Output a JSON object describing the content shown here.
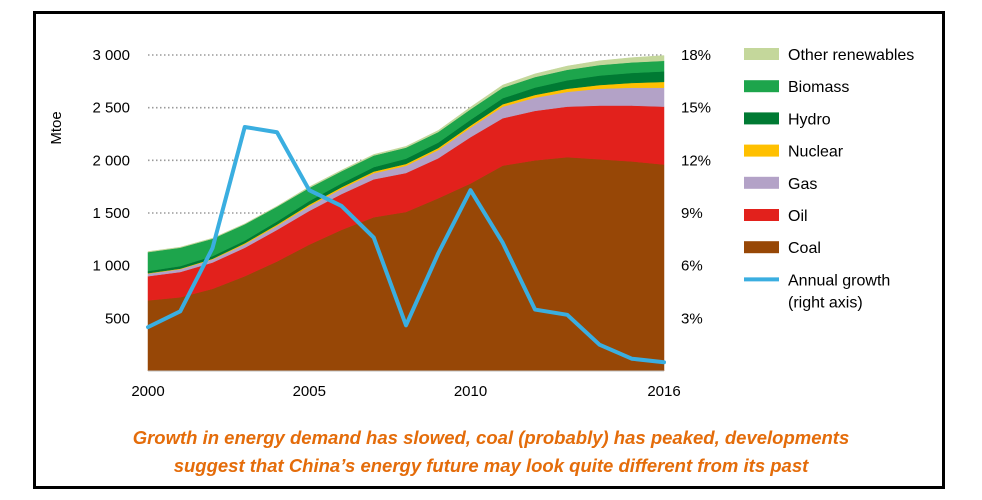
{
  "chart_data": {
    "type": "area",
    "title": "",
    "ylabel": "Mtoe",
    "y2label": "",
    "xlim": [
      2000,
      2016
    ],
    "ylim": [
      0,
      3000
    ],
    "y2lim": [
      0,
      18
    ],
    "x_ticks": [
      "2000",
      "2005",
      "2010",
      "2016"
    ],
    "y_ticks": [
      "500",
      "1 000",
      "1 500",
      "2 000",
      "2 500",
      "3 000"
    ],
    "y2_ticks": [
      "3%",
      "6%",
      "9%",
      "12%",
      "15%",
      "18%"
    ],
    "grid": "dotted horizontal",
    "years": [
      2000,
      2001,
      2002,
      2003,
      2004,
      2005,
      2006,
      2007,
      2008,
      2009,
      2010,
      2011,
      2012,
      2013,
      2014,
      2015,
      2016
    ],
    "series": [
      {
        "name": "Coal",
        "color": "#974706",
        "values": [
          670,
          700,
          780,
          900,
          1040,
          1200,
          1340,
          1460,
          1510,
          1640,
          1780,
          1950,
          2000,
          2030,
          2010,
          1990,
          1960
        ]
      },
      {
        "name": "Oil",
        "color": "#E2211C",
        "values": [
          230,
          240,
          250,
          270,
          300,
          320,
          340,
          360,
          370,
          380,
          440,
          450,
          470,
          480,
          510,
          530,
          550
        ]
      },
      {
        "name": "Gas",
        "color": "#B3A2C7",
        "values": [
          25,
          27,
          30,
          33,
          38,
          45,
          50,
          58,
          68,
          78,
          90,
          110,
          125,
          140,
          160,
          170,
          180
        ]
      },
      {
        "name": "Nuclear",
        "color": "#FFC000",
        "values": [
          4,
          5,
          6,
          10,
          12,
          14,
          15,
          16,
          18,
          19,
          20,
          23,
          26,
          30,
          35,
          45,
          55
        ]
      },
      {
        "name": "Hydro",
        "color": "#007A33",
        "values": [
          20,
          24,
          25,
          25,
          30,
          35,
          37,
          42,
          50,
          52,
          55,
          57,
          70,
          80,
          90,
          95,
          100
        ]
      },
      {
        "name": "Biomass",
        "color": "#1DA54C",
        "values": [
          180,
          175,
          165,
          155,
          140,
          125,
          115,
          110,
          105,
          100,
          100,
          100,
          100,
          100,
          100,
          100,
          100
        ]
      },
      {
        "name": "Other renewables",
        "color": "#C4D79B",
        "values": [
          5,
          5,
          5,
          5,
          5,
          10,
          10,
          10,
          12,
          15,
          20,
          25,
          30,
          35,
          40,
          45,
          50
        ]
      }
    ],
    "line_series": {
      "name": "Annual growth",
      "axis": "right",
      "color": "#3AAEE0",
      "values": [
        2.5,
        3.4,
        7.0,
        13.9,
        13.6,
        10.3,
        9.4,
        7.6,
        2.6,
        6.7,
        10.3,
        7.3,
        3.5,
        3.2,
        1.5,
        0.7,
        0.5
      ]
    },
    "legend": {
      "position": "right",
      "items": [
        {
          "label": "Other renewables",
          "color": "#C4D79B",
          "kind": "box"
        },
        {
          "label": "Biomass",
          "color": "#1DA54C",
          "kind": "box"
        },
        {
          "label": "Hydro",
          "color": "#007A33",
          "kind": "box"
        },
        {
          "label": "Nuclear",
          "color": "#FFC000",
          "kind": "box"
        },
        {
          "label": "Gas",
          "color": "#B3A2C7",
          "kind": "box"
        },
        {
          "label": "Oil",
          "color": "#E2211C",
          "kind": "box"
        },
        {
          "label": "Coal",
          "color": "#974706",
          "kind": "box"
        },
        {
          "label": "Annual growth",
          "label2": "(right axis)",
          "color": "#3AAEE0",
          "kind": "line"
        }
      ]
    }
  },
  "caption": {
    "line1": "Growth in energy demand has slowed, coal (probably) has peaked, developments",
    "line2": "suggest that China’s energy future may look quite different from its past",
    "color": "#E46C0A"
  }
}
